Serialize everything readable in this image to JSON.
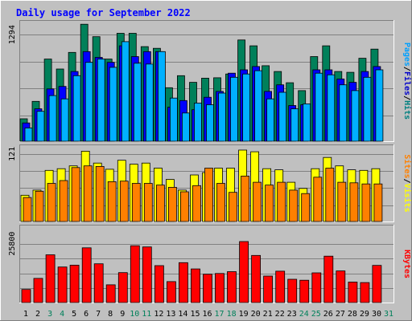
{
  "chart_data": {
    "type": "bar",
    "title": "Daily usage for September 2022",
    "categories": [
      "1",
      "2",
      "3",
      "4",
      "5",
      "6",
      "7",
      "8",
      "9",
      "10",
      "11",
      "12",
      "13",
      "14",
      "15",
      "16",
      "17",
      "18",
      "19",
      "20",
      "21",
      "22",
      "23",
      "24",
      "25",
      "26",
      "27",
      "28",
      "29",
      "30",
      "31"
    ],
    "weekend_days": [
      "3",
      "4",
      "10",
      "11",
      "17",
      "18",
      "24",
      "25",
      "31"
    ],
    "panels": [
      {
        "id": "hits",
        "tick_label": "1294",
        "tick_value": 1294,
        "ylim": [
          0,
          1470
        ],
        "side_labels": [
          {
            "text": "Pages",
            "color": "#00a0ff"
          },
          {
            "text": "/",
            "color": "#000000"
          },
          {
            "text": "Files",
            "color": "#0000cc"
          },
          {
            "text": "/",
            "color": "#000000"
          },
          {
            "text": "Hits",
            "color": "#008080"
          }
        ],
        "series": [
          {
            "name": "Hits",
            "color": "#00805a",
            "values": [
              280,
              490,
              1000,
              880,
              1080,
              1420,
              1270,
              1000,
              1310,
              1310,
              1150,
              1130,
              655,
              800,
              720,
              770,
              775,
              820,
              1230,
              1160,
              920,
              850,
              715,
              620,
              1030,
              1160,
              850,
              840,
              1010,
              1120,
              0
            ]
          },
          {
            "name": "Files",
            "color": "#0000ff",
            "values": [
              230,
              400,
              640,
              670,
              850,
              1090,
              1020,
              960,
              1160,
              1030,
              1090,
              1090,
              420,
              500,
              390,
              540,
              610,
              830,
              870,
              910,
              610,
              690,
              440,
              450,
              870,
              870,
              760,
              720,
              850,
              910,
              0
            ]
          },
          {
            "name": "Pages",
            "color": "#00b0ff",
            "values": [
              170,
              370,
              560,
              520,
              800,
              960,
              1000,
              900,
              1210,
              950,
              940,
              1090,
              530,
              350,
              470,
              450,
              590,
              780,
              820,
              860,
              520,
              600,
              400,
              460,
              830,
              810,
              690,
              620,
              780,
              870,
              0
            ]
          }
        ]
      },
      {
        "id": "visits",
        "tick_label": "121",
        "tick_value": 121,
        "ylim": [
          0,
          138
        ],
        "side_labels": [
          {
            "text": "Sites",
            "color": "#ff8000"
          },
          {
            "text": "/",
            "color": "#000000"
          },
          {
            "text": "Visits",
            "color": "#ffff00"
          }
        ],
        "series": [
          {
            "name": "Visits",
            "color": "#ffff00",
            "values": [
              48,
              57,
              92,
              95,
              100,
              126,
              105,
              94,
              110,
              103,
              105,
              96,
              76,
              57,
              84,
              88,
              96,
              96,
              128,
              125,
              95,
              93,
              71,
              60,
              95,
              115,
              100,
              93,
              92,
              95,
              0
            ]
          },
          {
            "name": "Sites",
            "color": "#ff8000",
            "values": [
              44,
              55,
              69,
              74,
              97,
              100,
              99,
              72,
              73,
              69,
              69,
              66,
              62,
              54,
              65,
              96,
              69,
              53,
              82,
              71,
              66,
              71,
              57,
              51,
              80,
              96,
              71,
              70,
              68,
              68,
              0
            ]
          }
        ]
      },
      {
        "id": "kbytes",
        "tick_label": "25800",
        "tick_value": 25800,
        "ylim": [
          0,
          34000
        ],
        "side_labels": [
          {
            "text": "KBytes",
            "color": "#ff0000"
          }
        ],
        "series": [
          {
            "name": "KBytes",
            "color": "#ff0000",
            "values": [
              6000,
              10800,
              21000,
              15700,
              16500,
              24000,
              17100,
              8000,
              13300,
              24900,
              24400,
              16300,
              9400,
              17600,
              14900,
              12600,
              12900,
              13700,
              26700,
              20700,
              11800,
              13900,
              10400,
              10000,
              13200,
              20400,
              14000,
              9200,
              9000,
              16400,
              0
            ]
          }
        ]
      }
    ]
  }
}
